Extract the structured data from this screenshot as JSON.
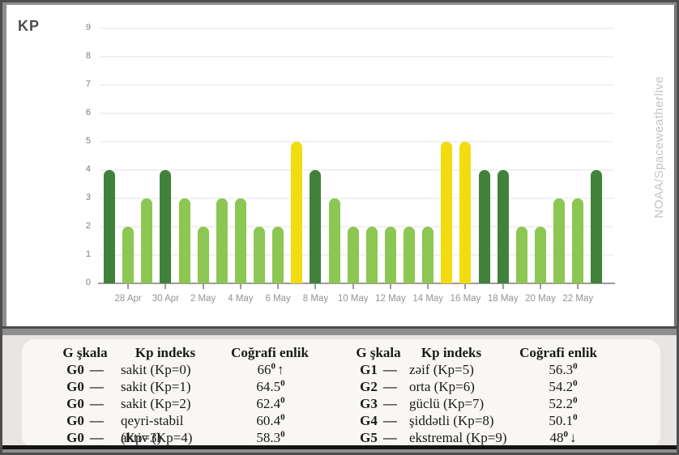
{
  "watermark": "NOAA/Spaceweatherlive",
  "chart_data": [
    {
      "type": "bar",
      "title": "KP",
      "ylabel": "",
      "xlabel": "",
      "ylim": [
        0,
        9
      ],
      "yticks": [
        0,
        1,
        2,
        3,
        4,
        5,
        6,
        7,
        8,
        9
      ],
      "grid": "horizontal",
      "values": [
        4,
        2,
        3,
        4,
        3,
        2,
        3,
        3,
        2,
        2,
        5,
        4,
        3,
        2,
        2,
        2,
        2,
        2,
        5,
        5,
        4,
        4,
        2,
        2,
        3,
        3,
        4
      ],
      "bar_colors": [
        "dark",
        "light",
        "light",
        "dark",
        "light",
        "light",
        "light",
        "light",
        "light",
        "light",
        "yellow",
        "dark",
        "light",
        "light",
        "light",
        "light",
        "light",
        "light",
        "yellow",
        "yellow",
        "dark",
        "dark",
        "light",
        "light",
        "light",
        "light",
        "dark"
      ],
      "palette": {
        "light": "#8cc653",
        "dark": "#41823b",
        "yellow": "#f2dc10"
      },
      "tick_labels": [
        "28 Apr",
        "30 Apr",
        "2 May",
        "4 May",
        "6 May",
        "8 May",
        "10 May",
        "12 May",
        "14 May",
        "16 May",
        "18 May",
        "20 May",
        "22 May"
      ],
      "tick_start_index": 1,
      "tick_every": 2
    },
    {
      "type": "table",
      "headers": [
        "G şkala",
        "Kp indeks",
        "Coğrafi enlik"
      ],
      "dash": "—",
      "rows": [
        {
          "g": "G0",
          "name": "sakit (Kp=0)",
          "lat": "66",
          "deg": "0",
          "arrow": "↑"
        },
        {
          "g": "G0",
          "name": "sakit (Kp=1)",
          "lat": "64.5",
          "deg": "0",
          "arrow": ""
        },
        {
          "g": "G0",
          "name": "sakit (Kp=2)",
          "lat": "62.4",
          "deg": "0",
          "arrow": ""
        },
        {
          "g": "G0",
          "name": "qeyri-stabil (Kp=3)",
          "lat": "60.4",
          "deg": "0",
          "arrow": ""
        },
        {
          "g": "G0",
          "name": "aktiv (Kp=4)",
          "lat": "58.3",
          "deg": "0",
          "arrow": ""
        }
      ]
    },
    {
      "type": "table",
      "headers": [
        "G şkala",
        "Kp indeks",
        "Coğrafi enlik"
      ],
      "dash": "—",
      "rows": [
        {
          "g": "G1",
          "name": "zəif (Kp=5)",
          "lat": "56.3",
          "deg": "0",
          "arrow": ""
        },
        {
          "g": "G2",
          "name": "orta (Kp=6)",
          "lat": "54.2",
          "deg": "0",
          "arrow": ""
        },
        {
          "g": "G3",
          "name": "güclü (Kp=7)",
          "lat": "52.2",
          "deg": "0",
          "arrow": ""
        },
        {
          "g": "G4",
          "name": "şiddətli (Kp=8)",
          "lat": "50.1",
          "deg": "0",
          "arrow": ""
        },
        {
          "g": "G5",
          "name": "ekstremal (Kp=9)",
          "lat": "48",
          "deg": "0",
          "arrow": "↓"
        }
      ]
    }
  ]
}
